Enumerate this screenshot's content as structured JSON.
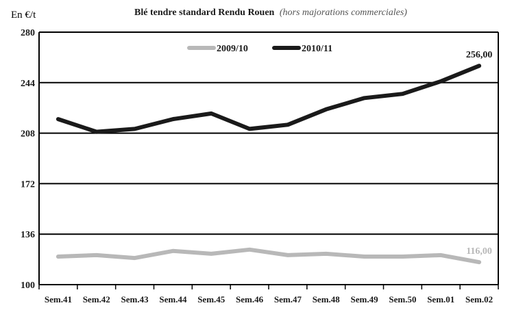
{
  "chart_data": {
    "type": "line",
    "title_main": "Blé tendre standard Rendu Rouen",
    "title_sub": "(hors majorations commerciales)",
    "ylabel": "En €/t",
    "xlabel": "",
    "ylim": [
      100,
      280
    ],
    "yticks": [
      100,
      136,
      172,
      208,
      244,
      280
    ],
    "grid": true,
    "legend_position": "top-center",
    "categories": [
      "Sem.41",
      "Sem.42",
      "Sem.43",
      "Sem.44",
      "Sem.45",
      "Sem.46",
      "Sem.47",
      "Sem.48",
      "Sem.49",
      "Sem.50",
      "Sem.01",
      "Sem.02"
    ],
    "series": [
      {
        "name": "2009/10",
        "color": "#b8b8b8",
        "values": [
          120,
          121,
          119,
          124,
          122,
          125,
          121,
          122,
          120,
          120,
          121,
          116
        ],
        "end_label": "116,00"
      },
      {
        "name": "2010/11",
        "color": "#1a1a1a",
        "values": [
          218,
          209,
          211,
          218,
          222,
          211,
          214,
          225,
          233,
          236,
          245,
          256
        ],
        "end_label": "256,00"
      }
    ]
  }
}
